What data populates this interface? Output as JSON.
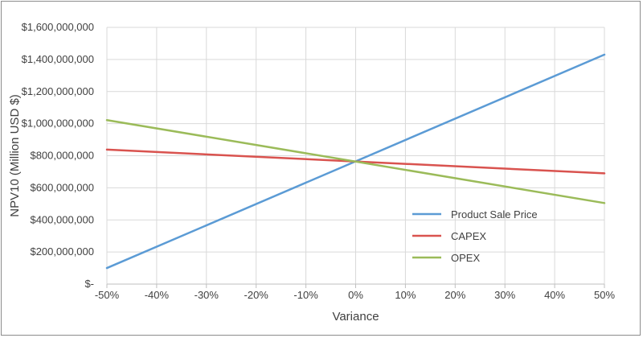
{
  "chart_data": {
    "type": "line",
    "xlabel": "Variance",
    "ylabel": "NPV10 (Million USD $)",
    "x": [
      -0.5,
      0.5
    ],
    "x_tick_labels": [
      "-50%",
      "-40%",
      "-30%",
      "-20%",
      "-10%",
      "0%",
      "10%",
      "20%",
      "30%",
      "40%",
      "50%"
    ],
    "y_tick_labels": [
      "$-",
      "$200,000,000",
      "$400,000,000",
      "$600,000,000",
      "$800,000,000",
      "$1,000,000,000",
      "$1,200,000,000",
      "$1,400,000,000",
      "$1,600,000,000"
    ],
    "ylim": [
      0,
      1600000000
    ],
    "xlim": [
      -0.5,
      0.5
    ],
    "grid": true,
    "legend_position": "inside-right",
    "series": [
      {
        "name": "Product Sale Price",
        "color": "#5b9bd5",
        "values": [
          100000000,
          1430000000
        ]
      },
      {
        "name": "CAPEX",
        "color": "#d9534f",
        "values": [
          838000000,
          690000000
        ]
      },
      {
        "name": "OPEX",
        "color": "#9bbb59",
        "values": [
          1022000000,
          505000000
        ]
      }
    ]
  }
}
